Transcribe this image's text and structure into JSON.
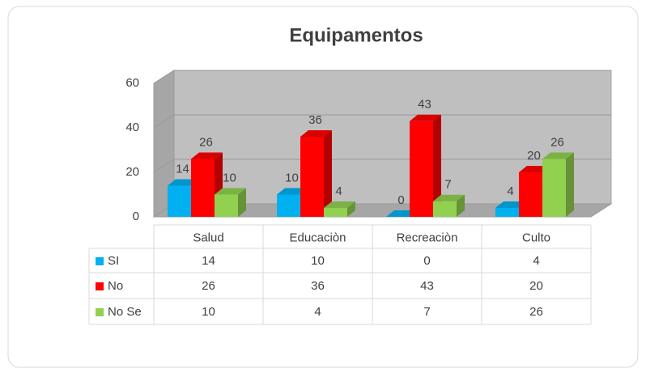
{
  "chart_data": {
    "type": "bar",
    "title": "Equipamentos",
    "categories": [
      "Salud",
      "Educaciòn",
      "Recreaciòn",
      "Culto"
    ],
    "series": [
      {
        "name": "SI",
        "color": "#00b0f0",
        "values": [
          14,
          10,
          0,
          4
        ]
      },
      {
        "name": "No",
        "color": "#ff0000",
        "values": [
          26,
          36,
          43,
          20
        ]
      },
      {
        "name": "No Se",
        "color": "#92d050",
        "values": [
          10,
          4,
          7,
          26
        ]
      }
    ],
    "ylim": [
      0,
      60
    ],
    "yticks": [
      0,
      20,
      40,
      60
    ],
    "grid": true,
    "data_table": true
  }
}
